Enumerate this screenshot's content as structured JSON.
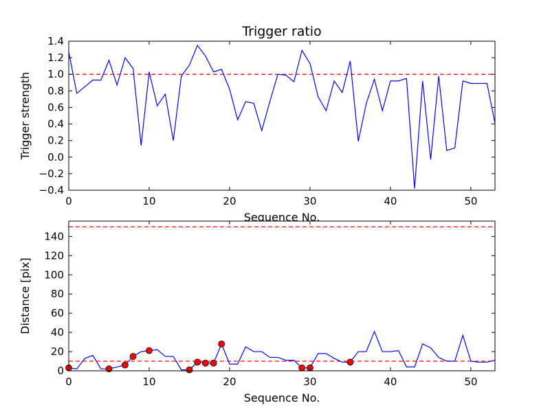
{
  "colors": {
    "series": "#0000ff",
    "threshold": "#ff0000",
    "marker_fill": "#ff0000",
    "axes": "#000000",
    "background": "#ffffff"
  },
  "chart_data": [
    {
      "type": "line",
      "title": "Trigger ratio",
      "xlabel": "Sequence No.",
      "ylabel": "Trigger strength",
      "xlim": [
        0,
        53
      ],
      "ylim": [
        -0.4,
        1.4
      ],
      "xticks": [
        0,
        10,
        20,
        30,
        40,
        50
      ],
      "xtick_labels": [
        "0",
        "10",
        "20",
        "30",
        "40",
        "50"
      ],
      "yticks": [
        -0.4,
        -0.2,
        0.0,
        0.2,
        0.4,
        0.6,
        0.8,
        1.0,
        1.2,
        1.4
      ],
      "ytick_labels": [
        "−0.4",
        "−0.2",
        "0.0",
        "0.2",
        "0.4",
        "0.6",
        "0.8",
        "1.0",
        "1.2",
        "1.4"
      ],
      "grid": false,
      "series": [
        {
          "name": "trigger strength",
          "x": [
            0,
            1,
            2,
            3,
            4,
            5,
            6,
            7,
            8,
            9,
            10,
            11,
            12,
            13,
            14,
            15,
            16,
            17,
            18,
            19,
            20,
            21,
            22,
            23,
            24,
            25,
            26,
            27,
            28,
            29,
            30,
            31,
            32,
            33,
            34,
            35,
            36,
            37,
            38,
            39,
            40,
            41,
            42,
            43,
            44,
            45,
            46,
            47,
            48,
            49,
            50,
            51,
            52,
            53
          ],
          "values": [
            1.27,
            0.77,
            0.85,
            0.93,
            0.93,
            1.17,
            0.87,
            1.2,
            1.07,
            0.14,
            1.03,
            0.62,
            0.76,
            0.2,
            0.98,
            1.11,
            1.35,
            1.22,
            1.03,
            1.06,
            0.82,
            0.45,
            0.67,
            0.65,
            0.32,
            0.67,
            1.0,
            0.99,
            0.91,
            1.29,
            1.13,
            0.73,
            0.56,
            0.92,
            0.78,
            1.16,
            0.19,
            0.65,
            0.94,
            0.56,
            0.92,
            0.92,
            0.95,
            -0.38,
            0.92,
            -0.03,
            0.98,
            0.08,
            0.11,
            0.92,
            0.89,
            0.89,
            0.89,
            0.41
          ]
        }
      ],
      "thresholds": [
        1.0
      ]
    },
    {
      "type": "line",
      "title": "",
      "xlabel": "Sequence No.",
      "ylabel": "Distance [pix]",
      "xlim": [
        0,
        53
      ],
      "ylim": [
        0,
        156
      ],
      "xticks": [
        0,
        10,
        20,
        30,
        40,
        50
      ],
      "xtick_labels": [
        "0",
        "10",
        "20",
        "30",
        "40",
        "50"
      ],
      "yticks": [
        0,
        20,
        40,
        60,
        80,
        100,
        120,
        140
      ],
      "ytick_labels": [
        "0",
        "20",
        "40",
        "60",
        "80",
        "100",
        "120",
        "140"
      ],
      "grid": false,
      "series": [
        {
          "name": "distance",
          "x": [
            0,
            1,
            2,
            3,
            4,
            5,
            6,
            7,
            8,
            9,
            10,
            11,
            12,
            13,
            14,
            15,
            16,
            17,
            18,
            19,
            20,
            21,
            22,
            23,
            24,
            25,
            26,
            27,
            28,
            29,
            30,
            31,
            32,
            33,
            34,
            35,
            36,
            37,
            38,
            39,
            40,
            41,
            42,
            43,
            44,
            45,
            46,
            47,
            48,
            49,
            50,
            51,
            52,
            53
          ],
          "values": [
            3,
            2,
            13,
            16,
            2,
            2,
            4,
            6,
            15,
            20,
            21,
            22,
            15,
            15,
            1,
            1,
            9,
            8,
            8,
            28,
            7,
            7,
            25,
            20,
            20,
            14,
            14,
            11,
            11,
            3,
            3,
            18,
            18,
            13,
            9,
            9,
            20,
            20,
            41,
            20,
            20,
            21,
            4,
            4,
            28,
            24,
            14,
            10,
            10,
            37,
            10,
            9,
            9,
            11
          ]
        },
        {
          "name": "flagged",
          "x": [
            0,
            5,
            7,
            8,
            10,
            15,
            16,
            17,
            18,
            19,
            29,
            30,
            35
          ],
          "values": [
            3,
            2,
            6,
            15,
            21,
            1,
            9,
            8,
            8,
            28,
            3,
            3,
            9
          ]
        }
      ],
      "thresholds": [
        150,
        10
      ]
    }
  ]
}
